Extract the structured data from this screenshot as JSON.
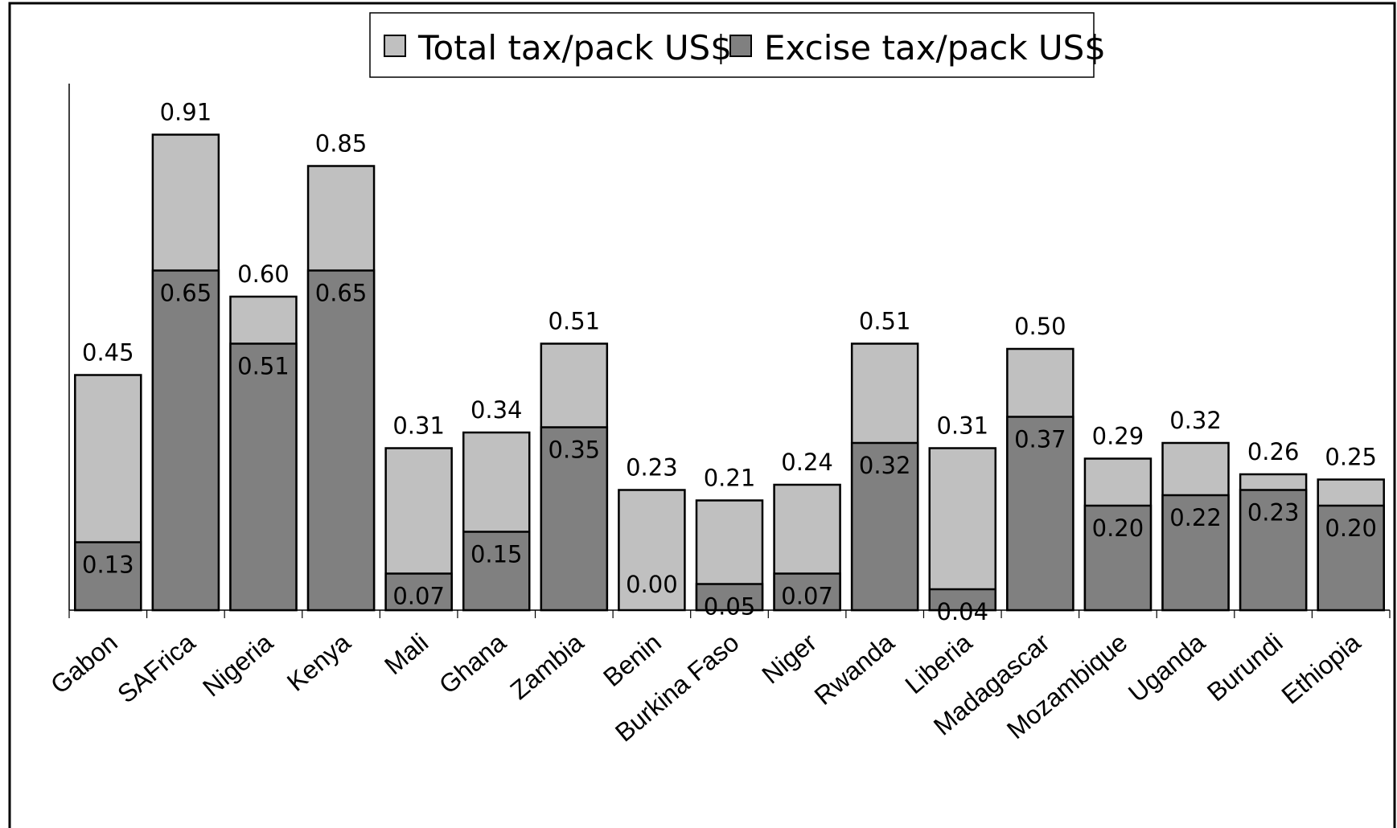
{
  "chart_data": {
    "type": "bar",
    "stacked": "overlay",
    "categories": [
      "Gabon",
      "SAFrica",
      "Nigeria",
      "Kenya",
      "Mali",
      "Ghana",
      "Zambia",
      "Benin",
      "Burkina Faso",
      "Niger",
      "Rwanda",
      "Liberia",
      "Madagascar",
      "Mozambique",
      "Uganda",
      "Burundi",
      "Ethiopia"
    ],
    "series": [
      {
        "name": "Total tax/pack US$",
        "values": [
          0.45,
          0.91,
          0.6,
          0.85,
          0.31,
          0.34,
          0.51,
          0.23,
          0.21,
          0.24,
          0.51,
          0.31,
          0.5,
          0.29,
          0.32,
          0.26,
          0.25
        ],
        "labels": [
          "0.45",
          "0.91",
          "0.60",
          "0.85",
          "0.31",
          "0.34",
          "0.51",
          "0.23",
          "0.21",
          "0.24",
          "0.51",
          "0.31",
          "0.50",
          "0.29",
          "0.32",
          "0.26",
          "0.25"
        ],
        "color": "#c0c0c0"
      },
      {
        "name": "Excise tax/pack US$",
        "values": [
          0.13,
          0.65,
          0.51,
          0.65,
          0.07,
          0.15,
          0.35,
          0.0,
          0.05,
          0.07,
          0.32,
          0.04,
          0.37,
          0.2,
          0.22,
          0.23,
          0.2
        ],
        "labels": [
          "0.13",
          "0.65",
          "0.51",
          "0.65",
          "0.07",
          "0.15",
          "0.35",
          "0.00",
          "0.05",
          "0.07",
          "0.32",
          "0.04",
          "0.37",
          "0.20",
          "0.22",
          "0.23",
          "0.20"
        ],
        "color": "#808080"
      }
    ],
    "ylim": [
      0,
      1.0
    ],
    "grid": false,
    "legend": "top-center",
    "title": "",
    "xlabel": "",
    "ylabel": ""
  }
}
